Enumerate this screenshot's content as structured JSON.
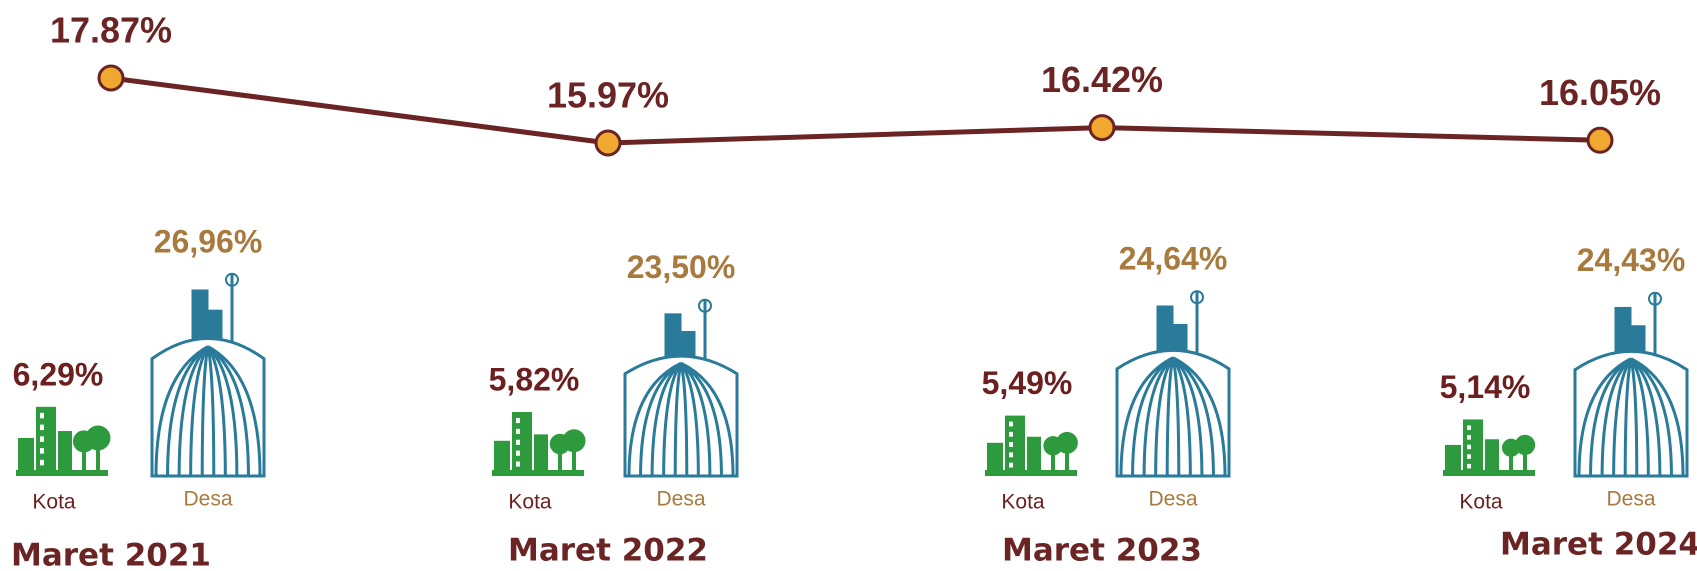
{
  "chart_data": {
    "type": "line",
    "categories": [
      "Maret 2021",
      "Maret 2022",
      "Maret 2023",
      "Maret 2024"
    ],
    "values": [
      17.87,
      15.97,
      16.42,
      16.05
    ],
    "value_labels": [
      "17.87%",
      "15.97%",
      "16.42%",
      "16.05%"
    ],
    "color": "#6b2424",
    "marker_color": "#f0a830",
    "groups": [
      {
        "name": "Kota",
        "color": "#2e9a3e",
        "label_color": "#6b1f1f",
        "values": [
          6.29,
          5.82,
          5.49,
          5.14
        ],
        "value_labels": [
          "6,29%",
          "5,82%",
          "5,49%",
          "5,14%"
        ]
      },
      {
        "name": "Desa",
        "color": "#2a7a9a",
        "label_color": "#a87a3e",
        "values": [
          26.96,
          23.5,
          24.64,
          24.43
        ],
        "value_labels": [
          "26,96%",
          "23,50%",
          "24,64%",
          "24,43%"
        ]
      }
    ]
  }
}
